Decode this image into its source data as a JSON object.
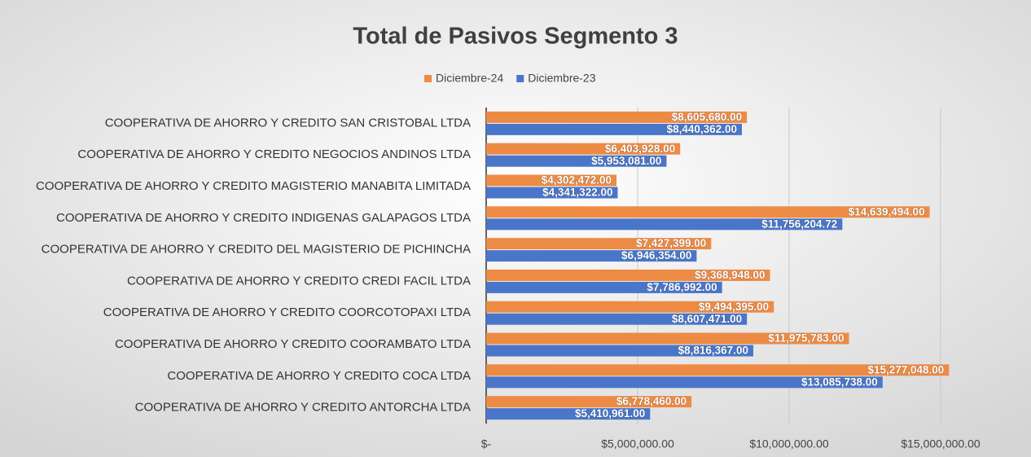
{
  "chart_data": {
    "type": "hbar",
    "title": "Total de Pasivos Segmento 3",
    "categories": [
      "COOPERATIVA DE AHORRO Y CREDITO SAN CRISTOBAL LTDA",
      "COOPERATIVA DE AHORRO Y CREDITO NEGOCIOS ANDINOS LTDA",
      "COOPERATIVA DE AHORRO Y CREDITO MAGISTERIO MANABITA LIMITADA",
      "COOPERATIVA DE AHORRO Y CREDITO INDIGENAS GALAPAGOS LTDA",
      "COOPERATIVA DE AHORRO Y CREDITO DEL MAGISTERIO DE PICHINCHA",
      "COOPERATIVA DE AHORRO Y CREDITO CREDI FACIL LTDA",
      "COOPERATIVA DE AHORRO Y CREDITO COORCOTOPAXI LTDA",
      "COOPERATIVA DE AHORRO Y CREDITO COORAMBATO LTDA",
      "COOPERATIVA DE AHORRO Y CREDITO COCA LTDA",
      "COOPERATIVA DE AHORRO Y CREDITO ANTORCHA LTDA"
    ],
    "series": [
      {
        "name": "Diciembre-24",
        "color": "#ed8b45",
        "values": [
          8605680,
          6403928,
          4302472,
          14639494,
          7427399,
          9368948,
          9494395,
          11975783,
          15277048,
          6778460
        ],
        "value_labels": [
          "$8,605,680.00",
          "$6,403,928.00",
          "$4,302,472.00",
          "$14,639,494.00",
          "$7,427,399.00",
          "$9,368,948.00",
          "$9,494,395.00",
          "$11,975,783.00",
          "$15,277,048.00",
          "$6,778,460.00"
        ]
      },
      {
        "name": "Diciembre-23",
        "color": "#4a76c9",
        "values": [
          8440362,
          5953081,
          4341322,
          11756204.72,
          6946354,
          7786992,
          8607471,
          8816367,
          13085738,
          5410961
        ],
        "value_labels": [
          "$8,440,362.00",
          "$5,953,081.00",
          "$4,341,322.00",
          "$11,756,204.72",
          "$6,946,354.00",
          "$7,786,992.00",
          "$8,607,471.00",
          "$8,816,367.00",
          "$13,085,738.00",
          "$5,410,961.00"
        ]
      }
    ],
    "xlim": [
      0,
      17500000
    ],
    "xticks": [
      {
        "value": 0,
        "label": "$-"
      },
      {
        "value": 5000000,
        "label": "$5,000,000.00"
      },
      {
        "value": 10000000,
        "label": "$10,000,000.00"
      },
      {
        "value": 15000000,
        "label": "$15,000,000.00"
      }
    ],
    "grid": true,
    "legend": "top"
  }
}
